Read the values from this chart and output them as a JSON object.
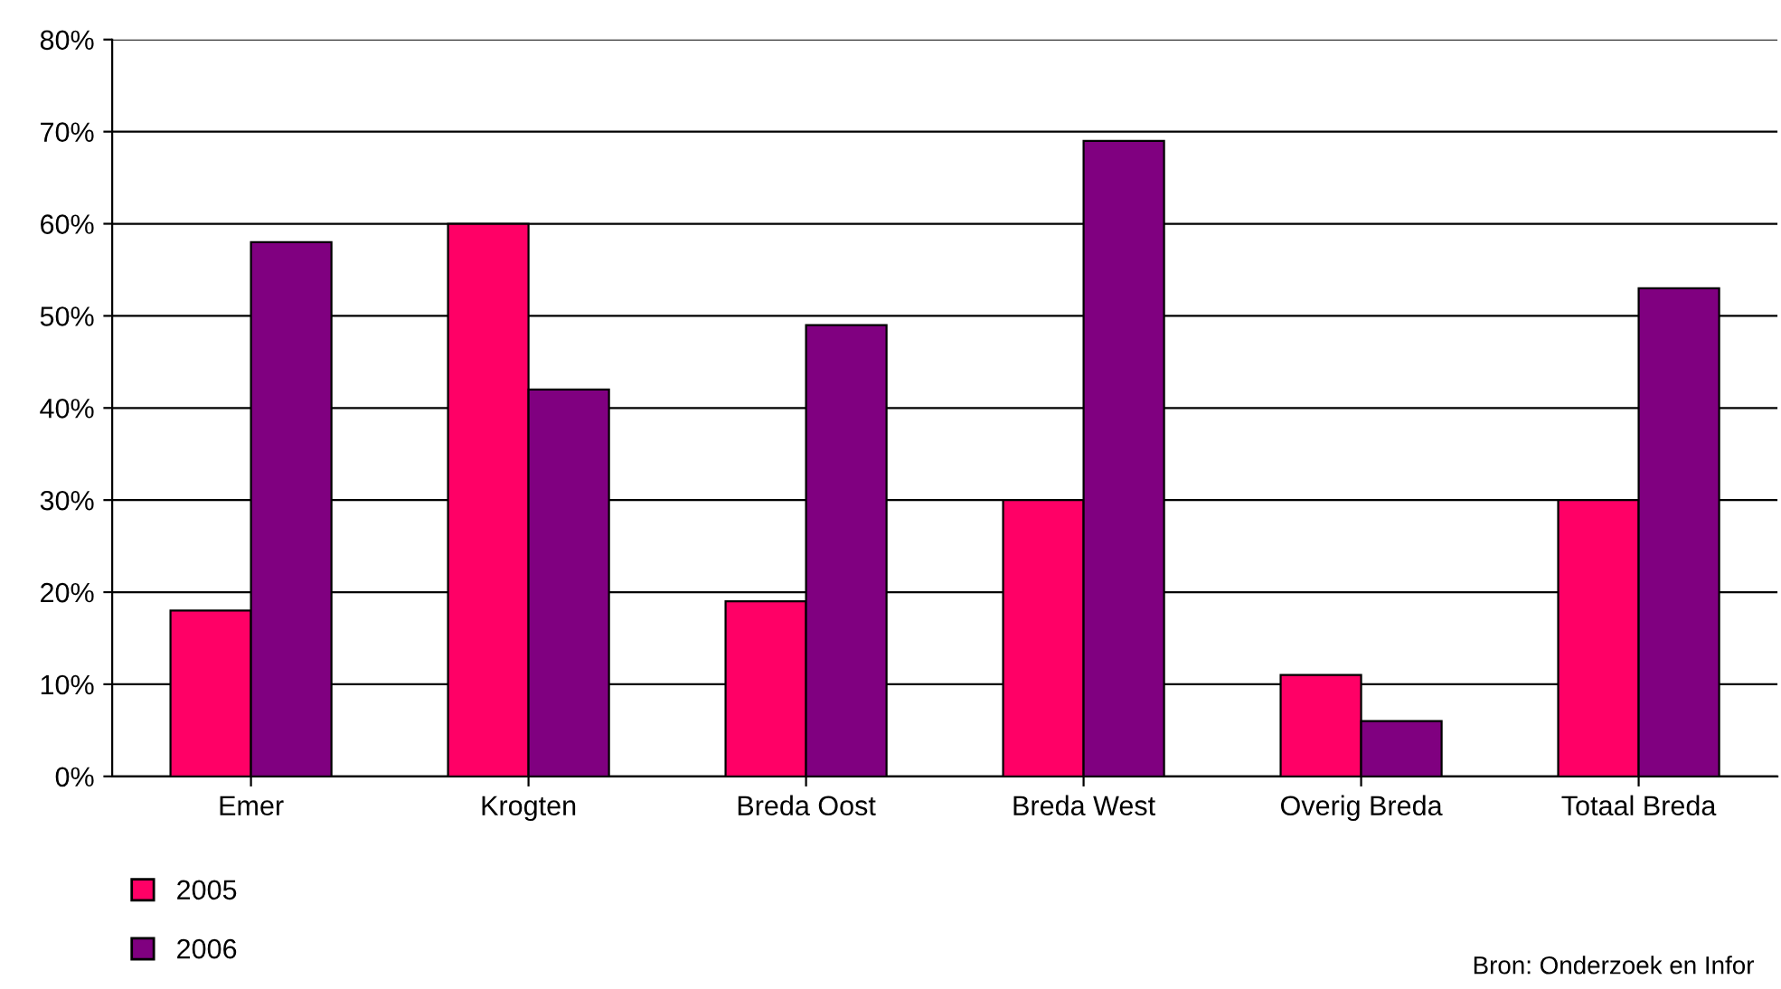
{
  "chart_data": {
    "type": "bar",
    "categories": [
      "Emer",
      "Krogten",
      "Breda Oost",
      "Breda West",
      "Overig Breda",
      "Totaal Breda"
    ],
    "series": [
      {
        "name": "2005",
        "color": "#ff0066",
        "values": [
          18,
          60,
          19,
          30,
          11,
          30
        ]
      },
      {
        "name": "2006",
        "color": "#800080",
        "values": [
          58,
          42,
          49,
          69,
          6,
          53
        ]
      }
    ],
    "ylim": [
      0,
      80
    ],
    "yticks": [
      {
        "value": 0,
        "label": "0%"
      },
      {
        "value": 10,
        "label": "10%"
      },
      {
        "value": 20,
        "label": "20%"
      },
      {
        "value": 30,
        "label": "30%"
      },
      {
        "value": 40,
        "label": "40%"
      },
      {
        "value": 50,
        "label": "50%"
      },
      {
        "value": 60,
        "label": "60%"
      },
      {
        "value": 70,
        "label": "70%"
      },
      {
        "value": 80,
        "label": "80%"
      }
    ],
    "grid": "y",
    "legend": "bottom left",
    "annotations": [
      "Bron: Onderzoek en Infor"
    ]
  }
}
